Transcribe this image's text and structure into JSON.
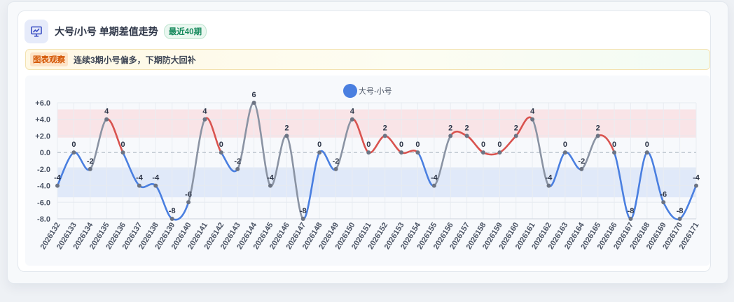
{
  "header": {
    "title": "大号/小号 单期差值走势",
    "badge": "最近40期"
  },
  "observation": {
    "tag": "图表观察",
    "text": "连续3期小号偏多，下期防大回补"
  },
  "chart_data": {
    "type": "line",
    "legend_position": "top-center",
    "categories": [
      "2026132",
      "2026133",
      "2026134",
      "2026135",
      "2026136",
      "2026137",
      "2026138",
      "2026139",
      "2026140",
      "2026141",
      "2026142",
      "2026143",
      "2026144",
      "2026145",
      "2026146",
      "2026147",
      "2026148",
      "2026149",
      "2026150",
      "2026151",
      "2026152",
      "2026153",
      "2026154",
      "2026155",
      "2026156",
      "2026157",
      "2026158",
      "2026159",
      "2026160",
      "2026161",
      "2026162",
      "2026163",
      "2026164",
      "2026165",
      "2026166",
      "2026167",
      "2026168",
      "2026169",
      "2026170",
      "2026171"
    ],
    "series": [
      {
        "name": "大号-小号",
        "values": [
          -4,
          0,
          -2,
          4,
          0,
          -4,
          -4,
          -8,
          -6,
          4,
          0,
          -2,
          6,
          -4,
          2,
          -8,
          0,
          -2,
          4,
          0,
          2,
          0,
          0,
          -4,
          2,
          2,
          0,
          0,
          2,
          4,
          -4,
          0,
          -2,
          2,
          0,
          -8,
          0,
          -6,
          -8,
          -4
        ],
        "colors": {
          "legend": "#4a7fe0",
          "positive": "#d9534f",
          "negative": "#4a7fe0",
          "mixed": "#8a93a3"
        }
      }
    ],
    "y_ticks": [
      "+6.0",
      "+4.0",
      "+2.0",
      "0.0",
      "-2.0",
      "-4.0",
      "-6.0",
      "-8.0"
    ],
    "ylim": [
      -8,
      6
    ],
    "grid": true,
    "bands": [
      {
        "from": 1.8,
        "to": 5.2,
        "color": "#f9e0e3"
      },
      {
        "from": -5.4,
        "to": -1.8,
        "color": "#dce6f8"
      }
    ],
    "zero_line": {
      "value": 0,
      "style": "dashed"
    }
  }
}
